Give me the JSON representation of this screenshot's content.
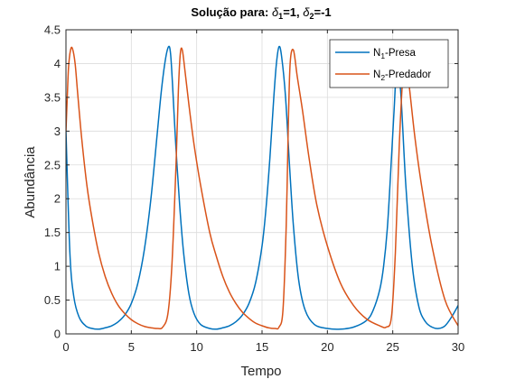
{
  "chart_data": {
    "type": "line",
    "title_prefix": "Solução para: ",
    "title_d1_sym": "δ",
    "title_d1_sub": "1",
    "title_d1_val": "=1, ",
    "title_d2_sym": "δ",
    "title_d2_sub": "2",
    "title_d2_val": "=-1",
    "xlabel": "Tempo",
    "ylabel": "Abundância",
    "xlim": [
      0,
      30
    ],
    "ylim": [
      0,
      4.5
    ],
    "xticks": [
      "0",
      "5",
      "10",
      "15",
      "20",
      "25",
      "30"
    ],
    "yticks": [
      "0",
      "0.5",
      "1",
      "1.5",
      "2",
      "2.5",
      "3",
      "3.5",
      "4",
      "4.5"
    ],
    "grid": true,
    "legend_position": "top-right",
    "series": [
      {
        "name_main": "N",
        "name_sub": "1",
        "name_rest": "-Presa",
        "color": "#0072BD",
        "x": [
          0,
          0.3,
          0.6,
          1.0,
          1.5,
          2.0,
          2.5,
          3.0,
          3.5,
          4.0,
          4.5,
          5.0,
          5.5,
          6.0,
          6.5,
          7.0,
          7.3,
          7.6,
          7.85,
          8.0,
          8.15,
          8.4,
          8.7,
          9.0,
          9.4,
          9.8,
          10.3,
          11.0,
          11.5,
          12.0,
          12.5,
          13.0,
          13.5,
          14.0,
          14.5,
          15.0,
          15.3,
          15.6,
          15.9,
          16.1,
          16.3,
          16.5,
          16.8,
          17.1,
          17.4,
          17.8,
          18.3,
          19.0,
          20.0,
          21.0,
          22.0,
          23.0,
          23.5,
          24.0,
          24.3,
          24.6,
          24.9,
          25.1,
          25.3,
          25.6,
          26.0,
          26.5,
          27.0,
          27.5,
          28.0,
          28.5,
          29.0,
          29.5,
          30.0
        ],
        "y": [
          3.0,
          1.2,
          0.55,
          0.25,
          0.12,
          0.08,
          0.07,
          0.09,
          0.12,
          0.18,
          0.28,
          0.45,
          0.75,
          1.25,
          2.0,
          3.0,
          3.6,
          4.05,
          4.25,
          4.15,
          3.7,
          2.8,
          1.9,
          1.2,
          0.6,
          0.3,
          0.14,
          0.08,
          0.07,
          0.09,
          0.12,
          0.18,
          0.28,
          0.45,
          0.75,
          1.3,
          1.85,
          2.6,
          3.5,
          4.0,
          4.25,
          4.1,
          3.5,
          2.5,
          1.6,
          0.8,
          0.35,
          0.14,
          0.08,
          0.07,
          0.1,
          0.2,
          0.35,
          0.65,
          1.0,
          1.6,
          2.6,
          3.3,
          3.9,
          3.6,
          2.2,
          1.0,
          0.4,
          0.18,
          0.1,
          0.08,
          0.12,
          0.25,
          0.42
        ]
      },
      {
        "name_main": "N",
        "name_sub": "2",
        "name_rest": "-Predador",
        "color": "#D95319",
        "x": [
          0,
          0.1,
          0.2,
          0.35,
          0.5,
          0.7,
          0.9,
          1.2,
          1.6,
          2.0,
          2.5,
          3.0,
          3.5,
          4.0,
          4.5,
          5.0,
          5.5,
          6.0,
          6.5,
          7.0,
          7.4,
          7.8,
          8.1,
          8.4,
          8.6,
          8.75,
          8.9,
          9.1,
          9.4,
          9.8,
          10.3,
          11.0,
          11.5,
          12.0,
          12.5,
          13.0,
          13.5,
          14.0,
          14.5,
          15.0,
          15.5,
          16.0,
          16.3,
          16.6,
          16.85,
          17.0,
          17.15,
          17.4,
          17.7,
          18.1,
          18.6,
          19.2,
          20.0,
          21.0,
          22.0,
          23.0,
          24.0,
          24.5,
          24.9,
          25.2,
          25.5,
          25.8,
          26.0,
          26.3,
          26.7,
          27.2,
          28.0,
          29.0,
          30.0
        ],
        "y": [
          3.0,
          3.5,
          3.95,
          4.2,
          4.22,
          4.0,
          3.55,
          2.9,
          2.2,
          1.7,
          1.2,
          0.85,
          0.6,
          0.42,
          0.3,
          0.21,
          0.15,
          0.11,
          0.09,
          0.08,
          0.1,
          0.3,
          1.0,
          2.4,
          3.6,
          4.15,
          4.2,
          3.9,
          3.4,
          2.8,
          2.2,
          1.5,
          1.15,
          0.85,
          0.62,
          0.45,
          0.32,
          0.23,
          0.16,
          0.12,
          0.09,
          0.08,
          0.1,
          0.35,
          1.6,
          3.0,
          4.0,
          4.2,
          3.8,
          3.3,
          2.6,
          1.9,
          1.3,
          0.75,
          0.42,
          0.22,
          0.12,
          0.1,
          0.25,
          1.2,
          2.8,
          3.9,
          4.1,
          3.6,
          2.9,
          2.2,
          1.3,
          0.5,
          0.12
        ]
      }
    ]
  }
}
